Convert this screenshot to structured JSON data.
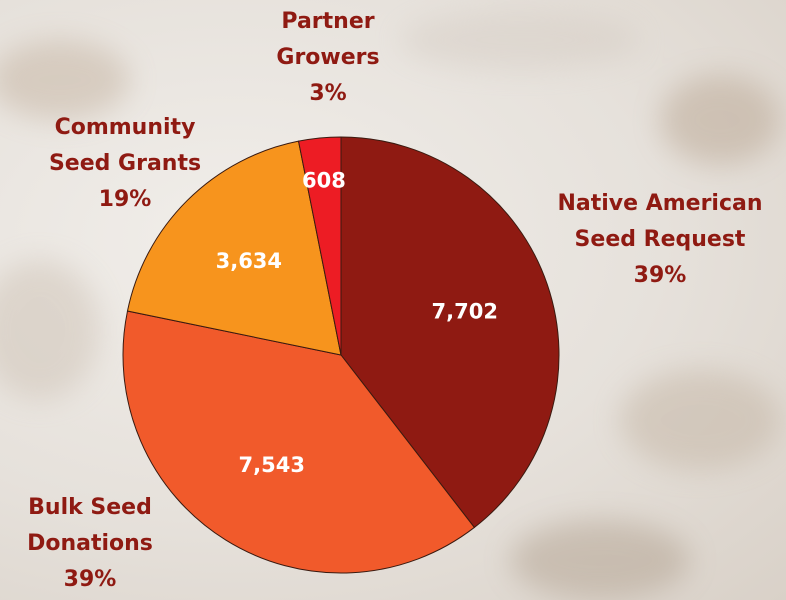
{
  "chart_data": {
    "type": "pie",
    "categories": [
      "Native American Seed Request",
      "Bulk Seed Donations",
      "Community Seed Grants",
      "Partner Growers"
    ],
    "values": [
      7702,
      7543,
      3634,
      608
    ],
    "value_labels": [
      "7,702",
      "7,543",
      "3,634",
      "608"
    ],
    "percent_labels": [
      "39%",
      "39%",
      "19%",
      "3%"
    ],
    "colors": [
      "#8f1a12",
      "#f15a2b",
      "#f7941d",
      "#ed1c24"
    ]
  }
}
